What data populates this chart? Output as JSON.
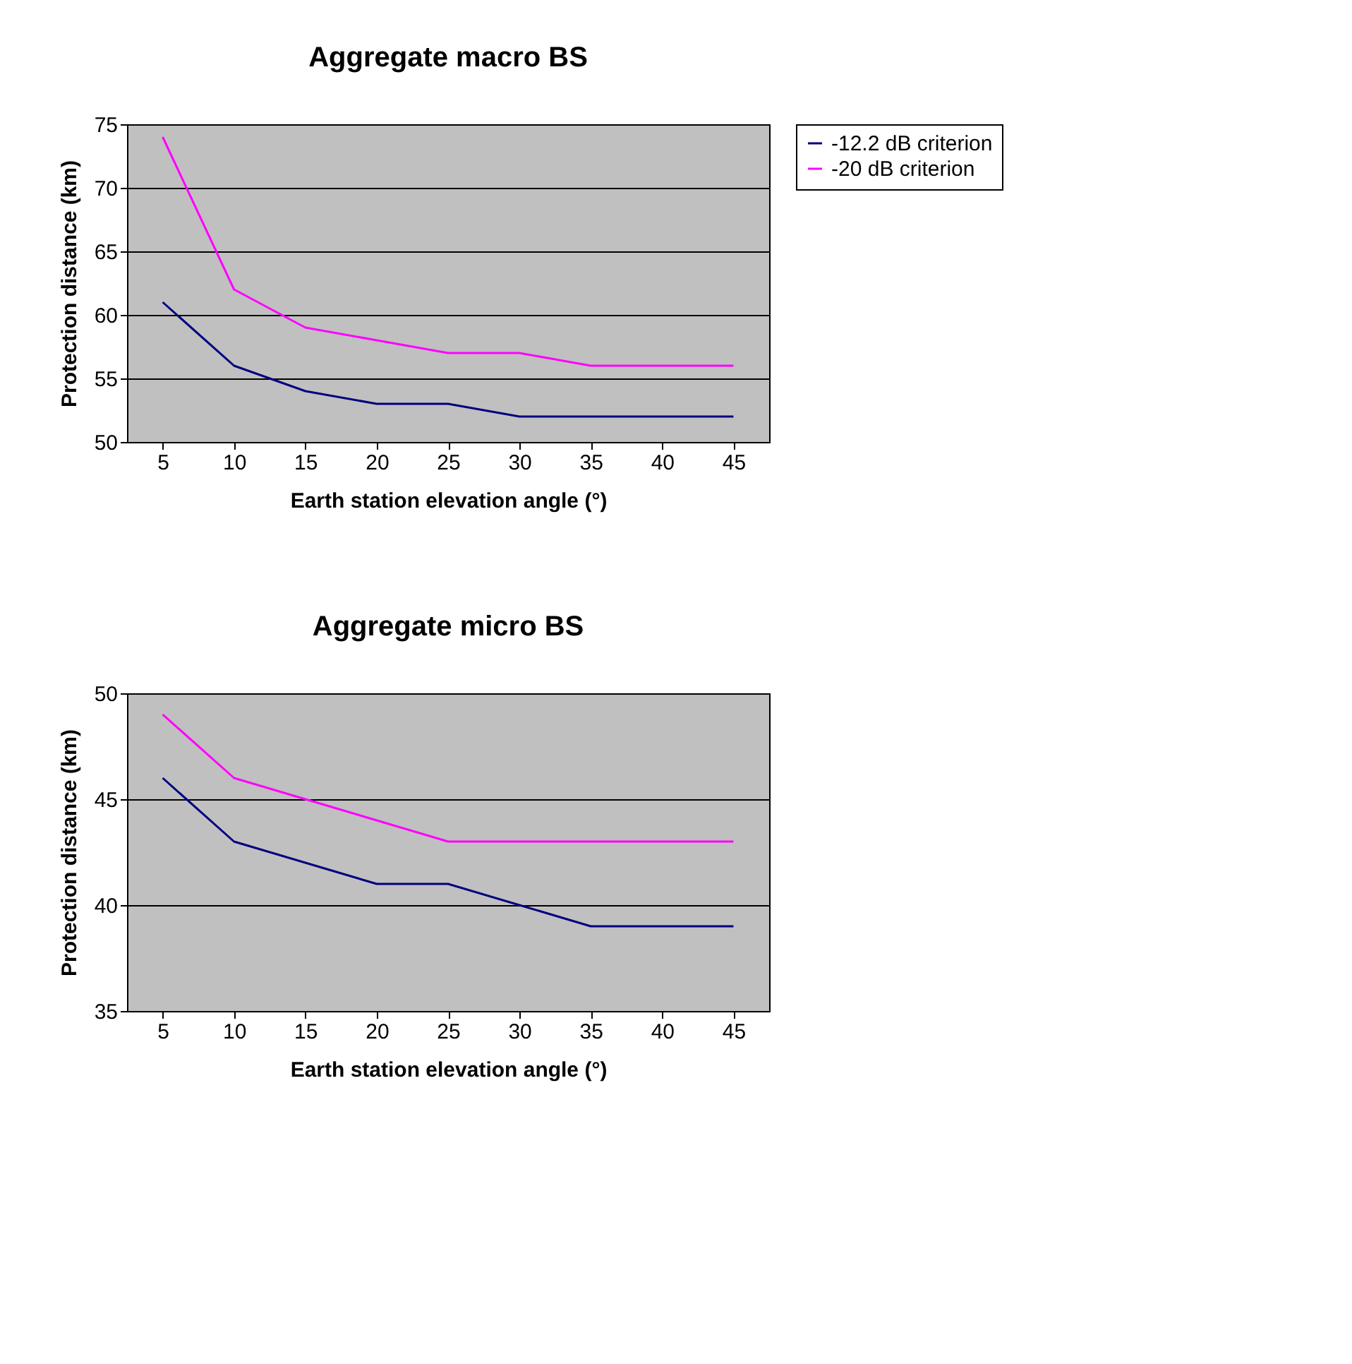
{
  "chart_data": [
    {
      "type": "line",
      "title": "Aggregate macro BS",
      "xlabel": "Earth station elevation angle (°)",
      "ylabel": "Protection distance (km)",
      "categories": [
        "5",
        "10",
        "15",
        "20",
        "25",
        "30",
        "35",
        "40",
        "45"
      ],
      "series": [
        {
          "name": "-12.2 dB criterion",
          "color": "#000080",
          "values": [
            61,
            56,
            54,
            53,
            53,
            52,
            52,
            52,
            52
          ]
        },
        {
          "name": "-20 dB criterion",
          "color": "#ff00ff",
          "values": [
            74,
            62,
            59,
            58,
            57,
            57,
            56,
            56,
            56
          ]
        }
      ],
      "ylim": [
        50,
        75
      ],
      "yticks": [
        50,
        55,
        60,
        65,
        70,
        75
      ],
      "grid": "y",
      "legend": "right",
      "marker": "none",
      "line_style": "solid"
    },
    {
      "type": "line",
      "title": "Aggregate micro BS",
      "xlabel": "Earth station elevation angle (°)",
      "ylabel": "Protection distance (km)",
      "categories": [
        "5",
        "10",
        "15",
        "20",
        "25",
        "30",
        "35",
        "40",
        "45"
      ],
      "series": [
        {
          "name": "-12.2 dB criterion",
          "color": "#000080",
          "values": [
            46,
            43,
            42,
            41,
            41,
            40,
            39,
            39,
            39
          ]
        },
        {
          "name": "-20 dB criterion",
          "color": "#ff00ff",
          "values": [
            49,
            46,
            45,
            44,
            43,
            43,
            43,
            43,
            43
          ]
        }
      ],
      "ylim": [
        35,
        50
      ],
      "yticks": [
        35,
        40,
        45,
        50
      ],
      "grid": "y",
      "legend": "right",
      "marker": "none",
      "line_style": "solid"
    }
  ]
}
